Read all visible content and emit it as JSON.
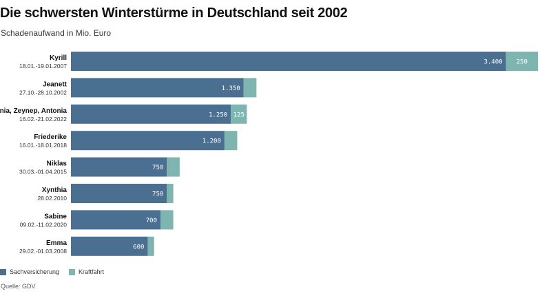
{
  "title": "Die schwersten Winterstürme in Deutschland seit 2002",
  "subtitle": "Schadenaufwand in Mio. Euro",
  "source": "Quelle: GDV",
  "colors": {
    "sach": "#4a6f91",
    "kraft": "#7fb5b0"
  },
  "legend": [
    {
      "name": "Sachversicherung",
      "color": "#4a6f91"
    },
    {
      "name": "Kraftfahrt",
      "color": "#7fb5b0"
    }
  ],
  "chart_data": {
    "type": "bar",
    "orientation": "horizontal",
    "stacked": true,
    "title": "Die schwersten Winterstürme in Deutschland seit 2002",
    "subtitle": "Schadenaufwand in Mio. Euro",
    "xlim": [
      0,
      3650
    ],
    "categories": [
      {
        "name": "Kyrill",
        "date": "18.01.-19.01.2007"
      },
      {
        "name": "Jeanett",
        "date": "27.10.-28.10.2002"
      },
      {
        "name": "Ylenia, Zeynep, Antonia",
        "date": "16.02.-21.02.2022"
      },
      {
        "name": "Friederike",
        "date": "16.01.-18.01.2018"
      },
      {
        "name": "Niklas",
        "date": "30.03.-01.04.2015"
      },
      {
        "name": "Xynthia",
        "date": "28.02.2010"
      },
      {
        "name": "Sabine",
        "date": "09.02.-11.02.2020"
      },
      {
        "name": "Emma",
        "date": "29.02.-01.03.2008"
      }
    ],
    "series": [
      {
        "name": "Sachversicherung",
        "values": [
          3400,
          1350,
          1250,
          1200,
          750,
          750,
          700,
          600
        ],
        "labels": [
          "3.400",
          "1.350",
          "1.250",
          "1.200",
          "750",
          "750",
          "700",
          "600"
        ]
      },
      {
        "name": "Kraftfahrt",
        "values": [
          250,
          100,
          125,
          100,
          100,
          50,
          100,
          50
        ],
        "labels": [
          "250",
          "",
          "125",
          "",
          "",
          "",
          "",
          ""
        ]
      }
    ]
  }
}
